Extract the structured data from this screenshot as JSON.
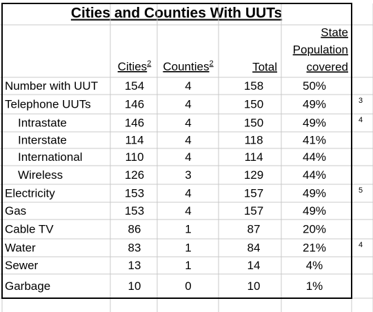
{
  "title": "Cities and Counties With UUTs",
  "header": {
    "cities": {
      "text": "Cities",
      "sup": "2"
    },
    "counties": {
      "text": "Counties",
      "sup": "2"
    },
    "total": "Total",
    "covered": [
      "State",
      "Population",
      "covered"
    ]
  },
  "table": {
    "rows": [
      {
        "label": "Number with UUT",
        "cells": [
          "154",
          "4",
          "158",
          "50%"
        ]
      },
      {
        "label": "Telephone UUTs",
        "cells": [
          "146",
          "4",
          "150",
          "49%"
        ],
        "note": "3"
      },
      {
        "label": "Intrastate",
        "cells": [
          "146",
          "4",
          "150",
          "49%"
        ],
        "note": "4",
        "indent": true
      },
      {
        "label": "Interstate",
        "cells": [
          "114",
          "4",
          "118",
          "41%"
        ],
        "indent": true
      },
      {
        "label": "International",
        "cells": [
          "110",
          "4",
          "114",
          "44%"
        ],
        "indent": true
      },
      {
        "label": "Wireless",
        "cells": [
          "126",
          "3",
          "129",
          "44%"
        ],
        "indent": true
      },
      {
        "label": "Electricity",
        "cells": [
          "153",
          "4",
          "157",
          "49%"
        ],
        "note": "5"
      },
      {
        "label": "Gas",
        "cells": [
          "153",
          "4",
          "157",
          "49%"
        ]
      },
      {
        "label": "Cable TV",
        "cells": [
          "86",
          "1",
          "87",
          "20%"
        ]
      },
      {
        "label": "Water",
        "cells": [
          "83",
          "1",
          "84",
          "21%"
        ],
        "note": "4"
      },
      {
        "label": "Sewer",
        "cells": [
          "13",
          "1",
          "14",
          "4%"
        ]
      },
      {
        "label": "Garbage",
        "cells": [
          "10",
          "0",
          "10",
          "1%"
        ]
      }
    ]
  }
}
